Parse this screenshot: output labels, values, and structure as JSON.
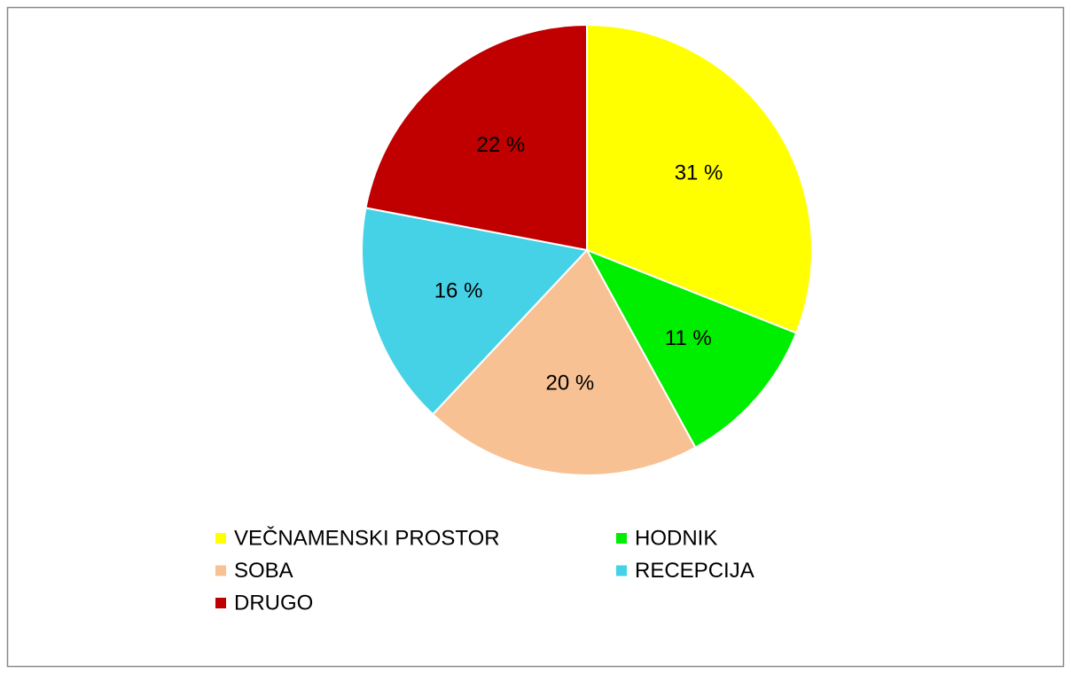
{
  "chart_data": {
    "type": "pie",
    "categories": [
      "VEČNAMENSKI PROSTOR",
      "HODNIK",
      "SOBA",
      "RECEPCIJA",
      "DRUGO"
    ],
    "values": [
      31,
      11,
      20,
      16,
      22
    ],
    "value_labels": [
      "31 %",
      "11 %",
      "20 %",
      "16 %",
      "22 %"
    ],
    "colors": [
      "#ffff00",
      "#00ee00",
      "#f8c194",
      "#46d2e6",
      "#c00000"
    ],
    "legend": "bottom"
  }
}
